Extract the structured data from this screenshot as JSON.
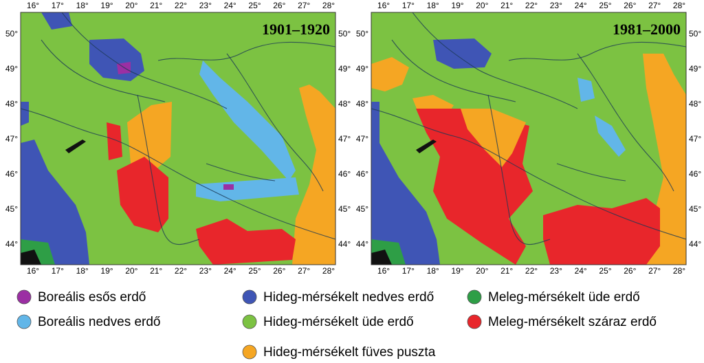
{
  "maps": [
    {
      "period": "1901–1920"
    },
    {
      "period": "1981–2000"
    }
  ],
  "longitude_labels": [
    "16°",
    "17°",
    "18°",
    "19°",
    "20°",
    "21°",
    "22°",
    "23°",
    "24°",
    "25°",
    "26°",
    "27°",
    "28°"
  ],
  "latitude_labels": [
    "50°",
    "49°",
    "48°",
    "47°",
    "46°",
    "45°",
    "44°"
  ],
  "legend": [
    {
      "label": "Boreális esős erdő",
      "color": "#9b2fa3"
    },
    {
      "label": "Boreális nedves erdő",
      "color": "#62b6e8"
    },
    {
      "label": "Hideg-mérsékelt nedves erdő",
      "color": "#3f55b5"
    },
    {
      "label": "Hideg-mérsékelt üde erdő",
      "color": "#7cc242"
    },
    {
      "label": "Hideg-mérsékelt füves puszta",
      "color": "#f5a623"
    },
    {
      "label": "Meleg-mérsékelt üde erdő",
      "color": "#2e9e46"
    },
    {
      "label": "Meleg-mérsékelt száraz erdő",
      "color": "#e8262b"
    }
  ]
}
